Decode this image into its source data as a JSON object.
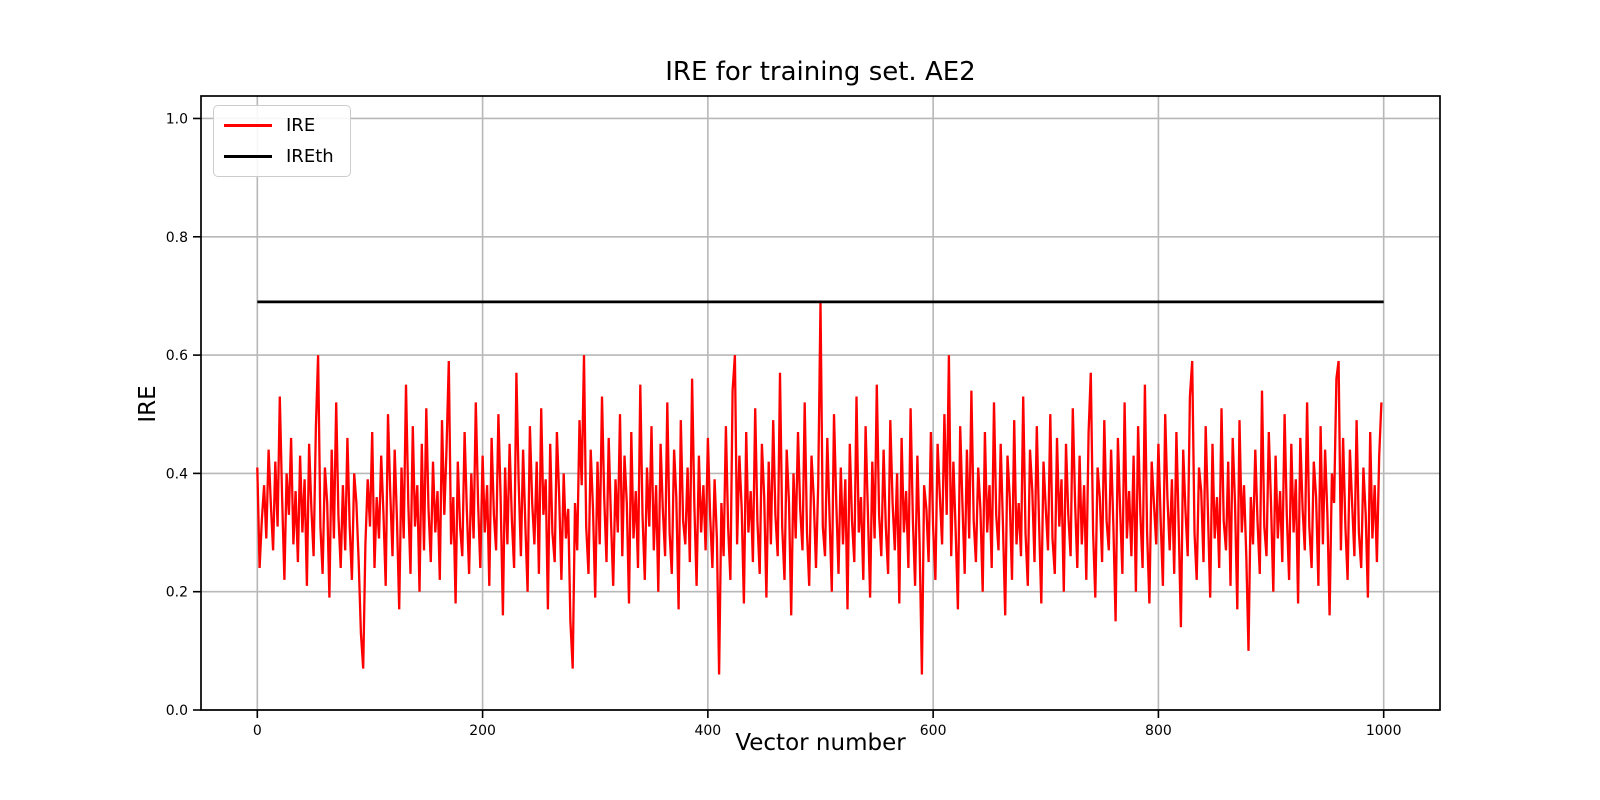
{
  "figure": {
    "background": "#ffffff",
    "text_color": "#000000",
    "spine_color": "#000000"
  },
  "chart_data": {
    "type": "line",
    "title": "IRE for training set. AE2",
    "xlabel": "Vector number",
    "ylabel": "IRE",
    "xlim": [
      -50,
      1050
    ],
    "ylim": [
      0,
      1.038
    ],
    "x_ticks": [
      0,
      200,
      400,
      600,
      800,
      1000
    ],
    "y_ticks": [
      0.0,
      0.2,
      0.4,
      0.6,
      0.8,
      1.0
    ],
    "grid": true,
    "grid_color": "#b8b8b8",
    "legend": {
      "position": "upper left",
      "entries": [
        {
          "label": "IRE",
          "color": "#ff0000"
        },
        {
          "label": "IREth",
          "color": "#000000"
        }
      ]
    },
    "threshold_value": 0.69,
    "series": [
      {
        "name": "IRE",
        "color": "#ff0000",
        "x_start": 0,
        "x_step": 2,
        "values": [
          0.41,
          0.24,
          0.32,
          0.38,
          0.29,
          0.44,
          0.35,
          0.27,
          0.42,
          0.31,
          0.53,
          0.36,
          0.22,
          0.4,
          0.33,
          0.46,
          0.28,
          0.37,
          0.25,
          0.43,
          0.3,
          0.39,
          0.21,
          0.45,
          0.34,
          0.26,
          0.48,
          0.6,
          0.31,
          0.23,
          0.41,
          0.35,
          0.19,
          0.44,
          0.29,
          0.52,
          0.33,
          0.24,
          0.38,
          0.27,
          0.46,
          0.31,
          0.22,
          0.4,
          0.35,
          0.25,
          0.13,
          0.07,
          0.28,
          0.39,
          0.31,
          0.47,
          0.24,
          0.36,
          0.29,
          0.43,
          0.33,
          0.21,
          0.5,
          0.37,
          0.26,
          0.44,
          0.32,
          0.17,
          0.41,
          0.29,
          0.55,
          0.35,
          0.23,
          0.48,
          0.31,
          0.38,
          0.2,
          0.45,
          0.27,
          0.51,
          0.34,
          0.25,
          0.42,
          0.3,
          0.37,
          0.22,
          0.49,
          0.33,
          0.44,
          0.59,
          0.28,
          0.36,
          0.18,
          0.42,
          0.31,
          0.26,
          0.47,
          0.34,
          0.23,
          0.4,
          0.29,
          0.52,
          0.35,
          0.24,
          0.43,
          0.3,
          0.38,
          0.21,
          0.46,
          0.33,
          0.27,
          0.5,
          0.36,
          0.16,
          0.41,
          0.28,
          0.45,
          0.32,
          0.24,
          0.57,
          0.39,
          0.26,
          0.44,
          0.31,
          0.2,
          0.48,
          0.35,
          0.28,
          0.42,
          0.23,
          0.51,
          0.33,
          0.39,
          0.17,
          0.45,
          0.3,
          0.25,
          0.47,
          0.36,
          0.22,
          0.4,
          0.29,
          0.34,
          0.15,
          0.07,
          0.35,
          0.27,
          0.49,
          0.38,
          0.6,
          0.31,
          0.23,
          0.44,
          0.34,
          0.19,
          0.42,
          0.28,
          0.53,
          0.36,
          0.25,
          0.46,
          0.32,
          0.21,
          0.39,
          0.3,
          0.5,
          0.26,
          0.43,
          0.35,
          0.18,
          0.47,
          0.29,
          0.37,
          0.24,
          0.55,
          0.33,
          0.22,
          0.41,
          0.31,
          0.48,
          0.27,
          0.38,
          0.2,
          0.45,
          0.34,
          0.26,
          0.52,
          0.3,
          0.23,
          0.44,
          0.36,
          0.17,
          0.49,
          0.32,
          0.28,
          0.41,
          0.25,
          0.56,
          0.35,
          0.21,
          0.43,
          0.3,
          0.38,
          0.27,
          0.46,
          0.33,
          0.24,
          0.39,
          0.29,
          0.06,
          0.35,
          0.26,
          0.48,
          0.31,
          0.22,
          0.54,
          0.6,
          0.28,
          0.43,
          0.34,
          0.18,
          0.47,
          0.3,
          0.37,
          0.25,
          0.51,
          0.32,
          0.23,
          0.45,
          0.36,
          0.19,
          0.42,
          0.28,
          0.49,
          0.33,
          0.26,
          0.57,
          0.31,
          0.22,
          0.44,
          0.35,
          0.16,
          0.4,
          0.29,
          0.47,
          0.34,
          0.27,
          0.52,
          0.3,
          0.21,
          0.43,
          0.36,
          0.24,
          0.38,
          0.69,
          0.31,
          0.26,
          0.46,
          0.33,
          0.2,
          0.5,
          0.35,
          0.23,
          0.41,
          0.28,
          0.39,
          0.17,
          0.45,
          0.32,
          0.25,
          0.53,
          0.3,
          0.36,
          0.22,
          0.48,
          0.34,
          0.19,
          0.42,
          0.29,
          0.55,
          0.33,
          0.26,
          0.44,
          0.31,
          0.23,
          0.49,
          0.35,
          0.27,
          0.4,
          0.18,
          0.46,
          0.3,
          0.37,
          0.24,
          0.51,
          0.32,
          0.21,
          0.43,
          0.28,
          0.06,
          0.38,
          0.34,
          0.25,
          0.47,
          0.31,
          0.22,
          0.45,
          0.36,
          0.28,
          0.5,
          0.33,
          0.6,
          0.26,
          0.42,
          0.3,
          0.17,
          0.48,
          0.35,
          0.23,
          0.44,
          0.29,
          0.54,
          0.32,
          0.25,
          0.41,
          0.34,
          0.2,
          0.47,
          0.3,
          0.38,
          0.24,
          0.52,
          0.33,
          0.27,
          0.45,
          0.31,
          0.16,
          0.43,
          0.36,
          0.22,
          0.49,
          0.28,
          0.35,
          0.26,
          0.53,
          0.3,
          0.21,
          0.44,
          0.37,
          0.25,
          0.48,
          0.32,
          0.18,
          0.42,
          0.34,
          0.27,
          0.5,
          0.29,
          0.23,
          0.46,
          0.31,
          0.39,
          0.2,
          0.45,
          0.33,
          0.26,
          0.51,
          0.35,
          0.24,
          0.43,
          0.28,
          0.38,
          0.22,
          0.47,
          0.57,
          0.3,
          0.19,
          0.41,
          0.36,
          0.25,
          0.49,
          0.32,
          0.27,
          0.44,
          0.31,
          0.15,
          0.46,
          0.34,
          0.23,
          0.52,
          0.29,
          0.37,
          0.26,
          0.43,
          0.2,
          0.48,
          0.33,
          0.24,
          0.55,
          0.3,
          0.18,
          0.42,
          0.35,
          0.28,
          0.45,
          0.32,
          0.21,
          0.5,
          0.36,
          0.27,
          0.39,
          0.23,
          0.47,
          0.31,
          0.14,
          0.44,
          0.34,
          0.26,
          0.53,
          0.59,
          0.3,
          0.22,
          0.41,
          0.37,
          0.25,
          0.48,
          0.33,
          0.19,
          0.45,
          0.29,
          0.36,
          0.24,
          0.51,
          0.32,
          0.27,
          0.42,
          0.21,
          0.46,
          0.35,
          0.17,
          0.49,
          0.3,
          0.38,
          0.26,
          0.1,
          0.36,
          0.28,
          0.44,
          0.32,
          0.23,
          0.54,
          0.31,
          0.26,
          0.47,
          0.35,
          0.2,
          0.43,
          0.29,
          0.37,
          0.25,
          0.5,
          0.33,
          0.22,
          0.45,
          0.3,
          0.39,
          0.18,
          0.46,
          0.34,
          0.27,
          0.52,
          0.31,
          0.24,
          0.42,
          0.36,
          0.21,
          0.48,
          0.28,
          0.44,
          0.33,
          0.16,
          0.4,
          0.35,
          0.56,
          0.59,
          0.27,
          0.46,
          0.31,
          0.22,
          0.44,
          0.35,
          0.26,
          0.49,
          0.3,
          0.24,
          0.41,
          0.33,
          0.19,
          0.47,
          0.29,
          0.38,
          0.25,
          0.43,
          0.52
        ]
      },
      {
        "name": "IREth",
        "color": "#000000",
        "x": [
          0,
          1000
        ],
        "values": [
          0.69,
          0.69
        ]
      }
    ]
  }
}
